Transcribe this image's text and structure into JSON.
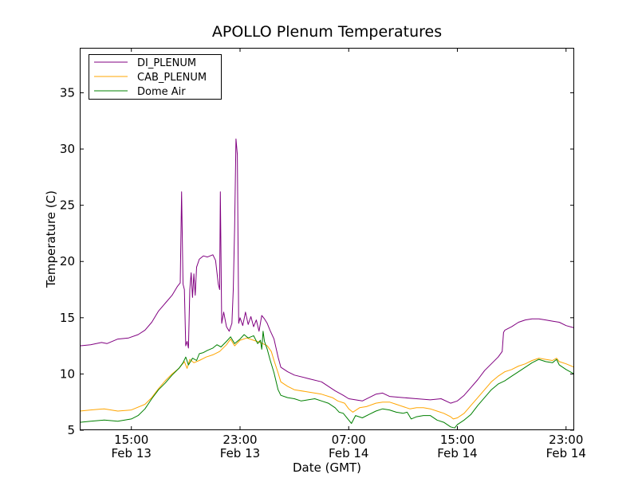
{
  "chart_data": {
    "type": "line",
    "title": "APOLLO Plenum Temperatures",
    "xlabel": "Date (GMT)",
    "ylabel": "Temperature (C)",
    "xlim": [
      11.2,
      47.6
    ],
    "ylim": [
      5,
      39
    ],
    "x_unit": "hours since Feb 13 00:00 GMT",
    "yticks": [
      5,
      10,
      15,
      20,
      25,
      30,
      35
    ],
    "xticks": [
      {
        "x": 15,
        "line1": "15:00",
        "line2": "Feb 13"
      },
      {
        "x": 23,
        "line1": "23:00",
        "line2": "Feb 13"
      },
      {
        "x": 31,
        "line1": "07:00",
        "line2": "Feb 14"
      },
      {
        "x": 39,
        "line1": "15:00",
        "line2": "Feb 14"
      },
      {
        "x": 47,
        "line1": "23:00",
        "line2": "Feb 14"
      }
    ],
    "legend": {
      "position": "upper-left"
    },
    "series": [
      {
        "name": "DI_PLENUM",
        "color": "#800080",
        "points": [
          [
            11.2,
            12.5
          ],
          [
            12.0,
            12.6
          ],
          [
            12.8,
            12.8
          ],
          [
            13.2,
            12.7
          ],
          [
            14.0,
            13.1
          ],
          [
            14.8,
            13.2
          ],
          [
            15.5,
            13.5
          ],
          [
            16.0,
            13.9
          ],
          [
            16.5,
            14.6
          ],
          [
            17.0,
            15.6
          ],
          [
            17.5,
            16.3
          ],
          [
            18.0,
            17.0
          ],
          [
            18.4,
            17.8
          ],
          [
            18.6,
            18.1
          ],
          [
            18.7,
            26.2
          ],
          [
            18.8,
            18.0
          ],
          [
            18.9,
            17.5
          ],
          [
            19.0,
            12.5
          ],
          [
            19.1,
            12.9
          ],
          [
            19.2,
            12.3
          ],
          [
            19.3,
            17.5
          ],
          [
            19.4,
            19.0
          ],
          [
            19.5,
            16.8
          ],
          [
            19.6,
            18.9
          ],
          [
            19.7,
            17.0
          ],
          [
            19.8,
            19.5
          ],
          [
            20.0,
            20.2
          ],
          [
            20.3,
            20.5
          ],
          [
            20.6,
            20.4
          ],
          [
            21.0,
            20.6
          ],
          [
            21.2,
            20.1
          ],
          [
            21.4,
            18.0
          ],
          [
            21.5,
            17.5
          ],
          [
            21.55,
            26.2
          ],
          [
            21.65,
            14.5
          ],
          [
            21.8,
            15.5
          ],
          [
            22.0,
            14.2
          ],
          [
            22.2,
            13.8
          ],
          [
            22.4,
            14.5
          ],
          [
            22.5,
            17.5
          ],
          [
            22.6,
            23.0
          ],
          [
            22.7,
            30.9
          ],
          [
            22.8,
            29.5
          ],
          [
            22.9,
            14.5
          ],
          [
            23.0,
            15.0
          ],
          [
            23.2,
            14.3
          ],
          [
            23.4,
            15.5
          ],
          [
            23.6,
            14.4
          ],
          [
            23.8,
            15.1
          ],
          [
            24.0,
            14.2
          ],
          [
            24.2,
            14.8
          ],
          [
            24.4,
            13.8
          ],
          [
            24.6,
            15.2
          ],
          [
            24.8,
            14.9
          ],
          [
            25.0,
            14.5
          ],
          [
            25.2,
            13.9
          ],
          [
            25.5,
            13.1
          ],
          [
            25.8,
            11.5
          ],
          [
            26.0,
            10.6
          ],
          [
            26.5,
            10.2
          ],
          [
            27.0,
            9.9
          ],
          [
            28.0,
            9.6
          ],
          [
            29.0,
            9.3
          ],
          [
            30.0,
            8.5
          ],
          [
            30.6,
            8.1
          ],
          [
            31.0,
            7.8
          ],
          [
            31.5,
            7.7
          ],
          [
            32.0,
            7.6
          ],
          [
            32.5,
            7.9
          ],
          [
            33.0,
            8.2
          ],
          [
            33.5,
            8.3
          ],
          [
            34.0,
            8.0
          ],
          [
            35.0,
            7.9
          ],
          [
            36.0,
            7.8
          ],
          [
            37.0,
            7.7
          ],
          [
            37.8,
            7.8
          ],
          [
            38.5,
            7.4
          ],
          [
            39.0,
            7.6
          ],
          [
            39.5,
            8.1
          ],
          [
            40.0,
            8.8
          ],
          [
            40.5,
            9.5
          ],
          [
            41.0,
            10.3
          ],
          [
            41.5,
            10.9
          ],
          [
            42.0,
            11.5
          ],
          [
            42.3,
            12.0
          ],
          [
            42.4,
            13.7
          ],
          [
            42.5,
            13.9
          ],
          [
            43.0,
            14.2
          ],
          [
            43.5,
            14.6
          ],
          [
            44.0,
            14.8
          ],
          [
            44.5,
            14.9
          ],
          [
            45.0,
            14.9
          ],
          [
            45.5,
            14.8
          ],
          [
            46.0,
            14.7
          ],
          [
            46.5,
            14.6
          ],
          [
            47.0,
            14.3
          ],
          [
            47.6,
            14.1
          ]
        ]
      },
      {
        "name": "CAB_PLENUM",
        "color": "#ffa500",
        "points": [
          [
            11.2,
            6.7
          ],
          [
            12.0,
            6.8
          ],
          [
            13.0,
            6.9
          ],
          [
            14.0,
            6.7
          ],
          [
            15.0,
            6.8
          ],
          [
            16.0,
            7.3
          ],
          [
            16.5,
            7.9
          ],
          [
            17.0,
            8.7
          ],
          [
            17.5,
            9.4
          ],
          [
            18.0,
            10.0
          ],
          [
            18.5,
            10.5
          ],
          [
            18.9,
            11.1
          ],
          [
            19.1,
            10.5
          ],
          [
            19.3,
            11.3
          ],
          [
            19.6,
            11.0
          ],
          [
            20.0,
            11.2
          ],
          [
            20.5,
            11.5
          ],
          [
            21.0,
            11.7
          ],
          [
            21.5,
            12.0
          ],
          [
            22.0,
            12.6
          ],
          [
            22.3,
            13.1
          ],
          [
            22.6,
            12.5
          ],
          [
            23.0,
            13.0
          ],
          [
            23.5,
            13.2
          ],
          [
            24.0,
            13.0
          ],
          [
            24.5,
            12.8
          ],
          [
            25.0,
            12.5
          ],
          [
            25.3,
            12.0
          ],
          [
            25.5,
            11.2
          ],
          [
            25.8,
            10.1
          ],
          [
            26.0,
            9.3
          ],
          [
            26.5,
            8.9
          ],
          [
            27.0,
            8.6
          ],
          [
            28.0,
            8.4
          ],
          [
            29.0,
            8.2
          ],
          [
            29.8,
            7.9
          ],
          [
            30.2,
            7.6
          ],
          [
            30.7,
            7.4
          ],
          [
            31.0,
            6.9
          ],
          [
            31.3,
            6.6
          ],
          [
            31.8,
            7.0
          ],
          [
            32.3,
            7.1
          ],
          [
            33.0,
            7.4
          ],
          [
            33.5,
            7.5
          ],
          [
            34.0,
            7.5
          ],
          [
            34.5,
            7.3
          ],
          [
            35.0,
            7.1
          ],
          [
            35.5,
            6.9
          ],
          [
            36.0,
            7.0
          ],
          [
            36.5,
            7.0
          ],
          [
            37.0,
            6.9
          ],
          [
            37.5,
            6.7
          ],
          [
            38.0,
            6.5
          ],
          [
            38.5,
            6.2
          ],
          [
            38.7,
            6.0
          ],
          [
            39.0,
            6.1
          ],
          [
            39.5,
            6.5
          ],
          [
            40.0,
            7.2
          ],
          [
            40.5,
            7.9
          ],
          [
            41.0,
            8.6
          ],
          [
            41.5,
            9.3
          ],
          [
            42.0,
            9.8
          ],
          [
            42.5,
            10.2
          ],
          [
            43.0,
            10.4
          ],
          [
            43.5,
            10.7
          ],
          [
            44.0,
            10.9
          ],
          [
            44.5,
            11.2
          ],
          [
            45.0,
            11.4
          ],
          [
            45.5,
            11.3
          ],
          [
            46.0,
            11.2
          ],
          [
            46.3,
            11.4
          ],
          [
            46.5,
            11.1
          ],
          [
            47.0,
            10.9
          ],
          [
            47.6,
            10.6
          ]
        ]
      },
      {
        "name": "Dome Air",
        "color": "#008000",
        "points": [
          [
            11.2,
            5.7
          ],
          [
            12.0,
            5.8
          ],
          [
            13.0,
            5.9
          ],
          [
            14.0,
            5.8
          ],
          [
            15.0,
            6.0
          ],
          [
            15.5,
            6.3
          ],
          [
            16.0,
            6.9
          ],
          [
            16.5,
            7.8
          ],
          [
            17.0,
            8.6
          ],
          [
            17.5,
            9.2
          ],
          [
            18.0,
            9.9
          ],
          [
            18.5,
            10.5
          ],
          [
            18.8,
            11.0
          ],
          [
            19.0,
            11.5
          ],
          [
            19.2,
            10.8
          ],
          [
            19.5,
            11.4
          ],
          [
            19.8,
            11.2
          ],
          [
            20.0,
            11.8
          ],
          [
            20.3,
            11.9
          ],
          [
            20.6,
            12.1
          ],
          [
            21.0,
            12.3
          ],
          [
            21.3,
            12.6
          ],
          [
            21.6,
            12.4
          ],
          [
            22.0,
            12.9
          ],
          [
            22.3,
            13.3
          ],
          [
            22.6,
            12.7
          ],
          [
            23.0,
            13.1
          ],
          [
            23.3,
            13.5
          ],
          [
            23.6,
            13.2
          ],
          [
            24.0,
            13.4
          ],
          [
            24.3,
            12.7
          ],
          [
            24.5,
            13.0
          ],
          [
            24.6,
            12.2
          ],
          [
            24.7,
            13.8
          ],
          [
            24.8,
            12.9
          ],
          [
            25.0,
            12.2
          ],
          [
            25.2,
            11.3
          ],
          [
            25.5,
            10.1
          ],
          [
            25.8,
            8.6
          ],
          [
            26.0,
            8.1
          ],
          [
            26.5,
            7.9
          ],
          [
            27.0,
            7.8
          ],
          [
            27.5,
            7.6
          ],
          [
            28.0,
            7.7
          ],
          [
            28.5,
            7.8
          ],
          [
            29.0,
            7.6
          ],
          [
            29.5,
            7.4
          ],
          [
            30.0,
            7.0
          ],
          [
            30.3,
            6.6
          ],
          [
            30.6,
            6.5
          ],
          [
            31.0,
            5.9
          ],
          [
            31.2,
            5.6
          ],
          [
            31.5,
            6.3
          ],
          [
            32.0,
            6.1
          ],
          [
            32.5,
            6.4
          ],
          [
            33.0,
            6.7
          ],
          [
            33.5,
            6.9
          ],
          [
            34.0,
            6.8
          ],
          [
            34.5,
            6.6
          ],
          [
            35.0,
            6.5
          ],
          [
            35.3,
            6.6
          ],
          [
            35.6,
            6.0
          ],
          [
            36.0,
            6.2
          ],
          [
            36.5,
            6.3
          ],
          [
            37.0,
            6.3
          ],
          [
            37.5,
            5.9
          ],
          [
            38.0,
            5.7
          ],
          [
            38.5,
            5.3
          ],
          [
            38.8,
            5.2
          ],
          [
            39.0,
            5.5
          ],
          [
            39.5,
            5.9
          ],
          [
            40.0,
            6.4
          ],
          [
            40.5,
            7.2
          ],
          [
            41.0,
            7.9
          ],
          [
            41.5,
            8.6
          ],
          [
            42.0,
            9.1
          ],
          [
            42.5,
            9.4
          ],
          [
            43.0,
            9.8
          ],
          [
            43.5,
            10.2
          ],
          [
            44.0,
            10.6
          ],
          [
            44.5,
            11.0
          ],
          [
            45.0,
            11.3
          ],
          [
            45.5,
            11.1
          ],
          [
            46.0,
            11.0
          ],
          [
            46.3,
            11.3
          ],
          [
            46.5,
            10.8
          ],
          [
            47.0,
            10.4
          ],
          [
            47.6,
            10.0
          ]
        ]
      }
    ]
  }
}
